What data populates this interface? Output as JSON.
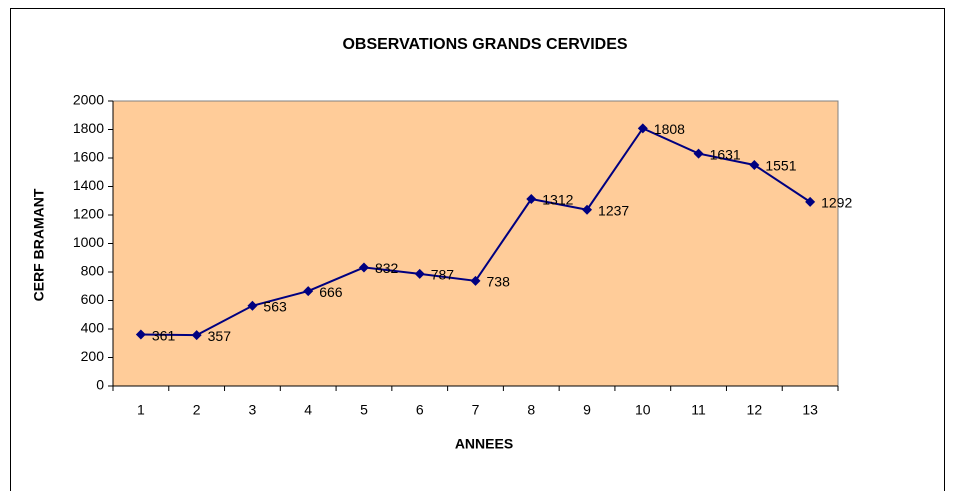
{
  "chart_data": {
    "type": "line",
    "title": "OBSERVATIONS GRANDS CERVIDES",
    "x_label": "ANNEES",
    "y_label": "CERF BRAMANT",
    "categories": [
      1,
      2,
      3,
      4,
      5,
      6,
      7,
      8,
      9,
      10,
      11,
      12,
      13
    ],
    "series": [
      {
        "name": "CERF BRAMANT",
        "color": "#000080",
        "values": [
          361,
          357,
          563,
          666,
          832,
          787,
          738,
          1312,
          1237,
          1808,
          1631,
          1551,
          1292
        ]
      }
    ],
    "ylim": [
      0,
      2000
    ],
    "yticks": [
      0,
      200,
      400,
      600,
      800,
      1000,
      1200,
      1400,
      1600,
      1800,
      2000
    ],
    "plot_background": "#FFCC99",
    "data_labels": true
  }
}
